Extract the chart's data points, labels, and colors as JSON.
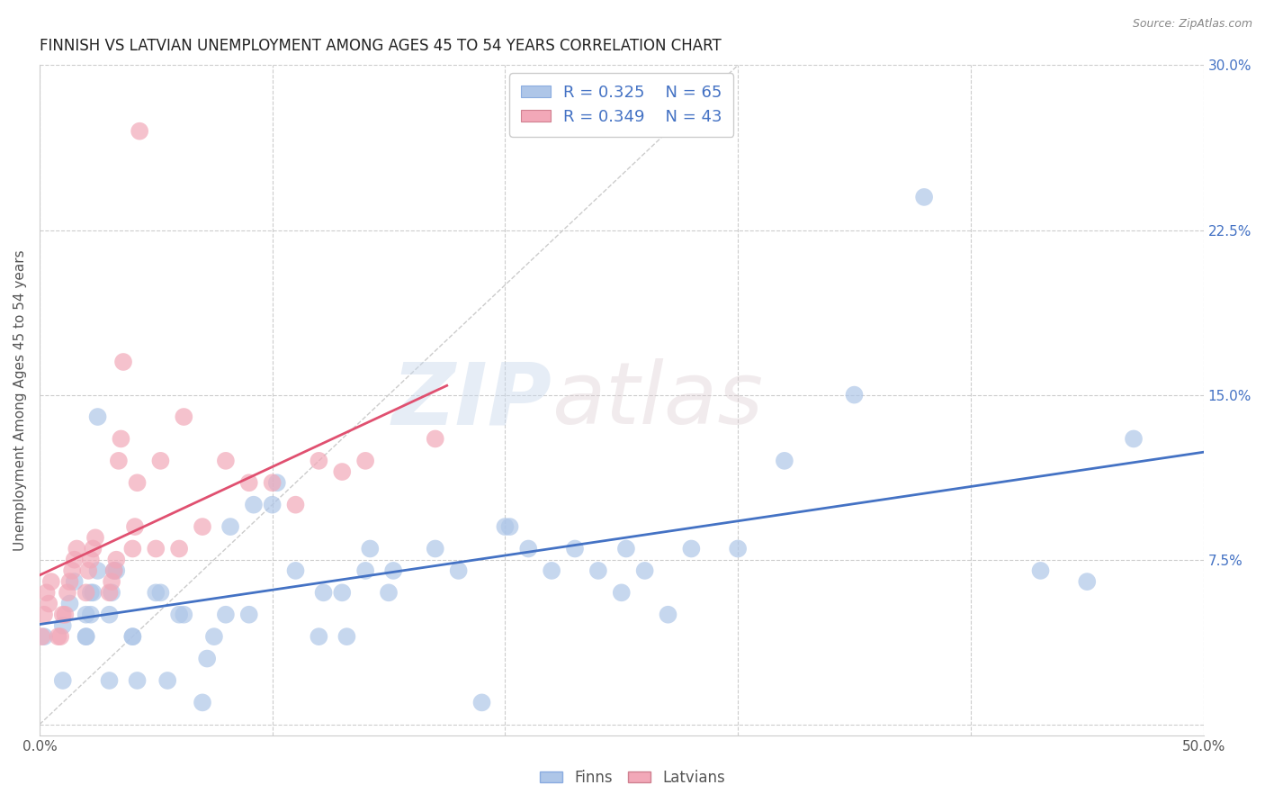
{
  "title": "FINNISH VS LATVIAN UNEMPLOYMENT AMONG AGES 45 TO 54 YEARS CORRELATION CHART",
  "source": "Source: ZipAtlas.com",
  "ylabel": "Unemployment Among Ages 45 to 54 years",
  "xlim": [
    0.0,
    0.5
  ],
  "ylim": [
    -0.005,
    0.3
  ],
  "xticks": [
    0.0,
    0.1,
    0.2,
    0.3,
    0.4,
    0.5
  ],
  "xtick_labels": [
    "0.0%",
    "",
    "",
    "",
    "",
    "50.0%"
  ],
  "yticks": [
    0.0,
    0.075,
    0.15,
    0.225,
    0.3
  ],
  "ytick_labels": [
    "",
    "7.5%",
    "15.0%",
    "22.5%",
    "30.0%"
  ],
  "background_color": "#ffffff",
  "grid_color": "#cccccc",
  "watermark_zip": "ZIP",
  "watermark_atlas": "atlas",
  "legend_R1": "R = 0.325",
  "legend_N1": "N = 65",
  "legend_R2": "R = 0.349",
  "legend_N2": "N = 43",
  "finns_color": "#aec6e8",
  "latvians_color": "#f2a8b8",
  "finns_line_color": "#4472c4",
  "latvians_line_color": "#e05070",
  "diagonal_color": "#cccccc",
  "finns_scatter_x": [
    0.002,
    0.01,
    0.01,
    0.013,
    0.015,
    0.02,
    0.02,
    0.02,
    0.022,
    0.022,
    0.023,
    0.025,
    0.025,
    0.03,
    0.03,
    0.031,
    0.032,
    0.033,
    0.04,
    0.04,
    0.042,
    0.05,
    0.052,
    0.055,
    0.06,
    0.062,
    0.07,
    0.072,
    0.075,
    0.08,
    0.082,
    0.09,
    0.092,
    0.1,
    0.102,
    0.11,
    0.12,
    0.122,
    0.13,
    0.132,
    0.14,
    0.142,
    0.15,
    0.152,
    0.17,
    0.18,
    0.19,
    0.2,
    0.202,
    0.21,
    0.22,
    0.23,
    0.24,
    0.25,
    0.252,
    0.26,
    0.27,
    0.28,
    0.3,
    0.32,
    0.35,
    0.38,
    0.43,
    0.45,
    0.47
  ],
  "finns_scatter_y": [
    0.04,
    0.02,
    0.045,
    0.055,
    0.065,
    0.04,
    0.04,
    0.05,
    0.05,
    0.06,
    0.06,
    0.07,
    0.14,
    0.02,
    0.05,
    0.06,
    0.07,
    0.07,
    0.04,
    0.04,
    0.02,
    0.06,
    0.06,
    0.02,
    0.05,
    0.05,
    0.01,
    0.03,
    0.04,
    0.05,
    0.09,
    0.05,
    0.1,
    0.1,
    0.11,
    0.07,
    0.04,
    0.06,
    0.06,
    0.04,
    0.07,
    0.08,
    0.06,
    0.07,
    0.08,
    0.07,
    0.01,
    0.09,
    0.09,
    0.08,
    0.07,
    0.08,
    0.07,
    0.06,
    0.08,
    0.07,
    0.05,
    0.08,
    0.08,
    0.12,
    0.15,
    0.24,
    0.07,
    0.065,
    0.13
  ],
  "latvians_scatter_x": [
    0.001,
    0.002,
    0.003,
    0.004,
    0.005,
    0.008,
    0.009,
    0.01,
    0.011,
    0.012,
    0.013,
    0.014,
    0.015,
    0.016,
    0.02,
    0.021,
    0.022,
    0.023,
    0.024,
    0.03,
    0.031,
    0.032,
    0.033,
    0.034,
    0.035,
    0.036,
    0.04,
    0.041,
    0.042,
    0.043,
    0.05,
    0.052,
    0.06,
    0.062,
    0.07,
    0.08,
    0.09,
    0.1,
    0.11,
    0.12,
    0.13,
    0.14,
    0.17
  ],
  "latvians_scatter_y": [
    0.04,
    0.05,
    0.06,
    0.055,
    0.065,
    0.04,
    0.04,
    0.05,
    0.05,
    0.06,
    0.065,
    0.07,
    0.075,
    0.08,
    0.06,
    0.07,
    0.075,
    0.08,
    0.085,
    0.06,
    0.065,
    0.07,
    0.075,
    0.12,
    0.13,
    0.165,
    0.08,
    0.09,
    0.11,
    0.27,
    0.08,
    0.12,
    0.08,
    0.14,
    0.09,
    0.12,
    0.11,
    0.11,
    0.1,
    0.12,
    0.115,
    0.12,
    0.13
  ]
}
